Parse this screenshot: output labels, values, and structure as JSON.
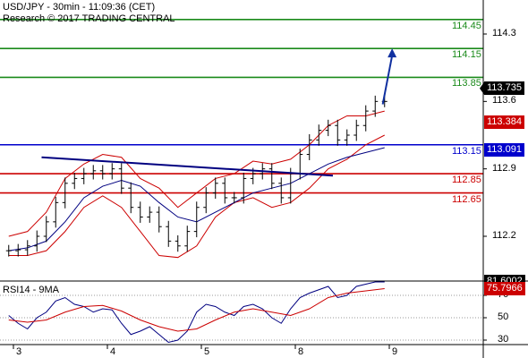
{
  "header": {
    "title": "USD/JPY - 30min - 11:09:36 (CET)",
    "credit": "Research © 2017 TRADING CENTRAL"
  },
  "rsi_label": "RSI14 - 9MA",
  "colors": {
    "green": "#1a8a1a",
    "blue": "#0000cc",
    "red": "#cc0000",
    "navy": "#000080",
    "arrow": "#1030a0",
    "tag_black": "#000000",
    "tag_red": "#cc0000",
    "tag_blue": "#0000cc"
  },
  "chart_data": [
    {
      "type": "candlestick",
      "title": "USD/JPY - 30min - 11:09:36 (CET)",
      "x_tick_labels": [
        "3",
        "4",
        "5",
        "8",
        "9"
      ],
      "y_tick_labels": [
        "114.3",
        "113.6",
        "112.9",
        "112.2"
      ],
      "ylim": [
        111.95,
        114.55
      ],
      "horizontal_levels": [
        {
          "value": 114.45,
          "label": "114.45",
          "color": "green"
        },
        {
          "value": 114.15,
          "label": "114.15",
          "color": "green"
        },
        {
          "value": 113.85,
          "label": "113.85",
          "color": "green"
        },
        {
          "value": 113.15,
          "label": "113.15",
          "color": "blue"
        },
        {
          "value": 112.85,
          "label": "112.85",
          "color": "red"
        },
        {
          "value": 112.65,
          "label": "112.65",
          "color": "red"
        }
      ],
      "price_tags": [
        {
          "value": 113.735,
          "label": "113.735",
          "style": "black"
        },
        {
          "value": 113.384,
          "label": "113.384",
          "style": "red"
        },
        {
          "value": 113.091,
          "label": "113.091",
          "style": "blue"
        }
      ],
      "trendline": {
        "from": {
          "x": 0.3,
          "y": 113.02
        },
        "to": {
          "x": 3.4,
          "y": 112.83
        }
      },
      "projection_arrow": {
        "from": {
          "x": 3.93,
          "y": 113.57
        },
        "to": {
          "x": 4.03,
          "y": 114.15
        }
      },
      "series": [
        {
          "kind": "close",
          "x": [
            -0.05,
            0.05,
            0.15,
            0.25,
            0.35,
            0.45,
            0.55,
            0.65,
            0.75,
            0.85,
            0.95,
            1.05,
            1.15,
            1.25,
            1.35,
            1.45,
            1.55,
            1.65,
            1.75,
            1.85,
            1.95,
            2.05,
            2.15,
            2.25,
            2.35,
            2.45,
            2.55,
            2.65,
            2.75,
            2.85,
            2.95,
            3.05,
            3.15,
            3.25,
            3.35,
            3.45,
            3.55,
            3.65,
            3.75,
            3.85,
            3.95
          ],
          "values": [
            112.05,
            112.06,
            112.1,
            112.2,
            112.35,
            112.55,
            112.75,
            112.8,
            112.85,
            112.88,
            112.85,
            112.9,
            112.7,
            112.5,
            112.4,
            112.45,
            112.3,
            112.15,
            112.1,
            112.25,
            112.5,
            112.65,
            112.75,
            112.6,
            112.6,
            112.8,
            112.85,
            112.9,
            112.75,
            112.6,
            112.85,
            113.05,
            113.2,
            113.3,
            113.35,
            113.2,
            113.25,
            113.35,
            113.5,
            113.6,
            113.6
          ]
        },
        {
          "kind": "upper_band",
          "x": [
            -0.05,
            0.15,
            0.35,
            0.55,
            0.75,
            0.95,
            1.15,
            1.35,
            1.55,
            1.75,
            1.95,
            2.15,
            2.35,
            2.55,
            2.75,
            2.95,
            3.15,
            3.35,
            3.55,
            3.75,
            3.95
          ],
          "values": [
            112.2,
            112.25,
            112.45,
            112.8,
            112.95,
            113.05,
            113.02,
            112.8,
            112.7,
            112.5,
            112.65,
            112.8,
            112.85,
            112.98,
            112.95,
            113.0,
            113.15,
            113.35,
            113.45,
            113.45,
            113.5
          ]
        },
        {
          "kind": "lower_band",
          "x": [
            -0.05,
            0.15,
            0.35,
            0.55,
            0.75,
            0.95,
            1.15,
            1.35,
            1.55,
            1.75,
            1.95,
            2.15,
            2.35,
            2.55,
            2.75,
            2.95,
            3.15,
            3.35,
            3.55,
            3.75,
            3.95
          ],
          "values": [
            112.0,
            112.0,
            112.05,
            112.25,
            112.5,
            112.62,
            112.5,
            112.25,
            112.0,
            111.98,
            112.1,
            112.4,
            112.55,
            112.6,
            112.5,
            112.55,
            112.7,
            112.9,
            113.0,
            113.15,
            113.25
          ]
        },
        {
          "kind": "moving_average",
          "x": [
            -0.05,
            0.15,
            0.35,
            0.55,
            0.75,
            0.95,
            1.15,
            1.35,
            1.55,
            1.75,
            1.95,
            2.15,
            2.35,
            2.55,
            2.75,
            2.95,
            3.15,
            3.35,
            3.55,
            3.75,
            3.95
          ],
          "values": [
            112.05,
            112.08,
            112.15,
            112.35,
            112.6,
            112.72,
            112.78,
            112.72,
            112.55,
            112.4,
            112.35,
            112.45,
            112.55,
            112.65,
            112.7,
            112.75,
            112.85,
            112.95,
            113.02,
            113.07,
            113.12
          ]
        }
      ]
    },
    {
      "type": "line",
      "title": "RSI14 - 9MA",
      "x_tick_labels": [
        "3",
        "4",
        "5",
        "8",
        "9"
      ],
      "y_tick_labels": [
        "70",
        "50",
        "30"
      ],
      "ylim": [
        22,
        86
      ],
      "price_tags": [
        {
          "value": 81.6002,
          "label": "81.6002",
          "style": "black"
        },
        {
          "value": 75.7966,
          "label": "75.7966",
          "style": "red"
        }
      ],
      "series": [
        {
          "name": "RSI14",
          "x": [
            -0.05,
            0.05,
            0.15,
            0.25,
            0.35,
            0.45,
            0.55,
            0.65,
            0.75,
            0.85,
            0.95,
            1.05,
            1.15,
            1.25,
            1.35,
            1.45,
            1.55,
            1.65,
            1.75,
            1.85,
            1.95,
            2.05,
            2.15,
            2.25,
            2.35,
            2.45,
            2.55,
            2.65,
            2.75,
            2.85,
            2.95,
            3.05,
            3.15,
            3.25,
            3.35,
            3.45,
            3.55,
            3.65,
            3.75,
            3.85,
            3.95
          ],
          "values": [
            52,
            45,
            40,
            50,
            55,
            65,
            68,
            62,
            60,
            55,
            58,
            57,
            45,
            35,
            38,
            42,
            35,
            28,
            30,
            38,
            55,
            62,
            60,
            55,
            52,
            60,
            62,
            58,
            50,
            45,
            58,
            68,
            72,
            75,
            78,
            68,
            70,
            78,
            80,
            82,
            82
          ]
        },
        {
          "name": "9MA",
          "x": [
            -0.05,
            0.15,
            0.35,
            0.55,
            0.75,
            0.95,
            1.15,
            1.35,
            1.55,
            1.75,
            1.95,
            2.15,
            2.35,
            2.55,
            2.75,
            2.95,
            3.15,
            3.35,
            3.55,
            3.75,
            3.95
          ],
          "values": [
            48,
            46,
            48,
            55,
            60,
            61,
            56,
            48,
            42,
            38,
            40,
            48,
            55,
            58,
            55,
            52,
            58,
            68,
            72,
            74,
            76
          ]
        }
      ]
    }
  ]
}
